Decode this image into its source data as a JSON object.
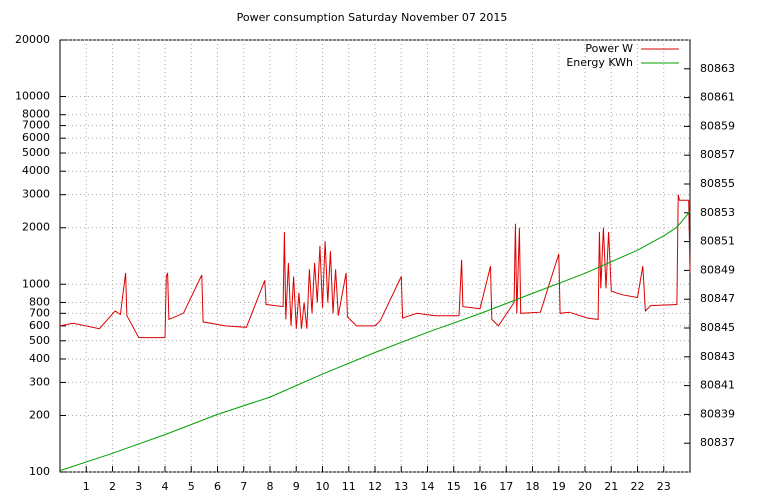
{
  "chart_data": {
    "type": "line",
    "title": "Power consumption Saturday November 07 2015",
    "xlim": [
      0,
      24
    ],
    "xticks": [
      1,
      2,
      3,
      4,
      5,
      6,
      7,
      8,
      9,
      10,
      11,
      12,
      13,
      14,
      15,
      16,
      17,
      18,
      19,
      20,
      21,
      22,
      23
    ],
    "ylim": [
      100,
      20000
    ],
    "ylog": true,
    "yticks": [
      100,
      200,
      300,
      400,
      500,
      600,
      700,
      800,
      1000,
      2000,
      3000,
      4000,
      5000,
      6000,
      7000,
      8000,
      10000,
      20000
    ],
    "y2lim": [
      80835,
      80865
    ],
    "y2ticks": [
      80837,
      80839,
      80841,
      80843,
      80845,
      80847,
      80849,
      80851,
      80853,
      80855,
      80857,
      80859,
      80861,
      80863
    ],
    "grid": true,
    "legend": "top-right",
    "series": [
      {
        "name": "Power W",
        "color": "#dd0000",
        "x": [
          0,
          0.5,
          1.5,
          2.1,
          2.3,
          2.5,
          2.55,
          3,
          4,
          4.05,
          4.1,
          4.15,
          4.7,
          5.4,
          5.45,
          6.3,
          7.1,
          7.8,
          7.85,
          8.5,
          8.55,
          8.6,
          8.7,
          8.8,
          8.9,
          9.0,
          9.1,
          9.2,
          9.3,
          9.4,
          9.5,
          9.6,
          9.7,
          9.8,
          9.9,
          10.0,
          10.1,
          10.2,
          10.3,
          10.4,
          10.5,
          10.6,
          10.9,
          10.95,
          11.3,
          12,
          12.2,
          13,
          13.05,
          13.6,
          14.3,
          15.2,
          15.3,
          15.35,
          16,
          16.4,
          16.45,
          16.7,
          17.3,
          17.35,
          17.4,
          17.5,
          17.55,
          18.3,
          19.0,
          19.05,
          19.4,
          20.1,
          20.5,
          20.55,
          20.6,
          20.7,
          20.8,
          20.9,
          21,
          21.4,
          22,
          22.2,
          22.3,
          22.5,
          23.5,
          23.55,
          23.6,
          23.95,
          24
        ],
        "values": [
          600,
          620,
          580,
          720,
          690,
          1150,
          680,
          520,
          520,
          1100,
          1150,
          650,
          700,
          1120,
          630,
          600,
          590,
          1050,
          780,
          760,
          1900,
          650,
          1300,
          600,
          1100,
          580,
          900,
          580,
          800,
          580,
          1200,
          700,
          1300,
          800,
          1600,
          750,
          1700,
          800,
          1500,
          700,
          1200,
          680,
          1150,
          670,
          600,
          600,
          640,
          1100,
          660,
          700,
          680,
          680,
          1350,
          760,
          740,
          1250,
          650,
          600,
          800,
          2100,
          700,
          2000,
          700,
          710,
          1450,
          700,
          710,
          660,
          650,
          1900,
          950,
          2000,
          950,
          1900,
          920,
          880,
          850,
          1250,
          720,
          770,
          780,
          3000,
          2800,
          2800,
          1150
        ]
      },
      {
        "name": "Energy KWh",
        "color": "#00a000",
        "axis": "y2",
        "x": [
          0,
          2,
          4,
          6,
          8,
          10,
          12,
          14,
          16,
          18,
          20,
          22,
          23,
          23.5,
          24
        ],
        "values": [
          80835.1,
          80836.3,
          80837.6,
          80839.0,
          80840.2,
          80841.8,
          80843.3,
          80844.7,
          80846.0,
          80847.4,
          80848.8,
          80850.4,
          80851.4,
          80852.0,
          80853.1
        ]
      }
    ]
  }
}
